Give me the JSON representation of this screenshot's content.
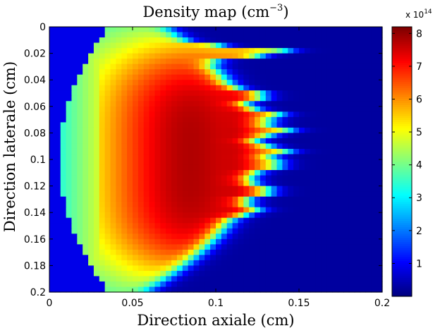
{
  "chart_data": {
    "type": "heatmap",
    "title": "Density map (cm",
    "title_exponent": "−3",
    "title_close": ")",
    "xlabel": "Direction axiale (cm)",
    "ylabel": "Direction laterale (cm)",
    "xlim": [
      0,
      0.2
    ],
    "ylim": [
      0,
      0.2
    ],
    "y_reversed": true,
    "x_ticks": [
      "0",
      "0.05",
      "0.1",
      "0.15",
      "0.2"
    ],
    "y_ticks": [
      "0",
      "0.02",
      "0.04",
      "0.06",
      "0.08",
      "0.1",
      "0.12",
      "0.14",
      "0.16",
      "0.18",
      "0.2"
    ],
    "colormap": "jet",
    "colorbar": {
      "range": [
        0,
        820000000000000.0
      ],
      "ticks": [
        "1",
        "2",
        "3",
        "4",
        "5",
        "6",
        "7",
        "8"
      ],
      "multiplier_prefix": "x 10",
      "multiplier_exponent": "14"
    },
    "plasma_model": {
      "units": "density in units of 1e14 cm^-3",
      "grid": {
        "nx": 60,
        "ny": 50
      },
      "background": 0.25,
      "core_peak": 7.8,
      "edge_value": 3.2,
      "front_x_at_center": 0.123,
      "front_jets": [
        {
          "y": 0.019,
          "tip_x": 0.147
        },
        {
          "y": 0.052,
          "tip_x": 0.131
        },
        {
          "y": 0.067,
          "tip_x": 0.14
        },
        {
          "y": 0.078,
          "tip_x": 0.145
        },
        {
          "y": 0.094,
          "tip_x": 0.144
        },
        {
          "y": 0.104,
          "tip_x": 0.141
        },
        {
          "y": 0.124,
          "tip_x": 0.135
        },
        {
          "y": 0.138,
          "tip_x": 0.125
        }
      ]
    }
  }
}
